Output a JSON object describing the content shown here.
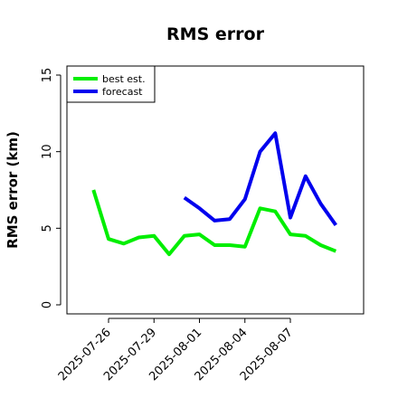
{
  "chart_data": {
    "type": "line",
    "title": "RMS error",
    "xlabel": "",
    "ylabel": "RMS error (km)",
    "ylim": [
      0,
      15
    ],
    "yticks": [
      0,
      5,
      10,
      15
    ],
    "x_tick_labels": [
      "2025-07-26",
      "2025-07-29",
      "2025-08-01",
      "2025-08-04",
      "2025-08-07"
    ],
    "legend_position": "top-left",
    "grid": false,
    "series": [
      {
        "name": "best est.",
        "color": "#00ee00",
        "x": [
          "2025-07-25",
          "2025-07-26",
          "2025-07-27",
          "2025-07-28",
          "2025-07-29",
          "2025-07-30",
          "2025-07-31",
          "2025-08-01",
          "2025-08-02",
          "2025-08-03",
          "2025-08-04",
          "2025-08-05",
          "2025-08-06",
          "2025-08-07",
          "2025-08-08",
          "2025-08-09",
          "2025-08-10"
        ],
        "values": [
          7.5,
          4.3,
          4.0,
          4.4,
          4.5,
          3.3,
          4.5,
          4.6,
          3.9,
          3.9,
          3.8,
          6.3,
          6.1,
          4.6,
          4.5,
          3.9,
          3.5
        ]
      },
      {
        "name": "forecast",
        "color": "#0000ee",
        "x": [
          "2025-07-31",
          "2025-08-01",
          "2025-08-02",
          "2025-08-03",
          "2025-08-04",
          "2025-08-05",
          "2025-08-06",
          "2025-08-07",
          "2025-08-08",
          "2025-08-09",
          "2025-08-10"
        ],
        "values": [
          7.0,
          6.3,
          5.5,
          5.6,
          6.9,
          10.0,
          11.2,
          5.7,
          8.4,
          6.6,
          5.2
        ]
      }
    ]
  }
}
